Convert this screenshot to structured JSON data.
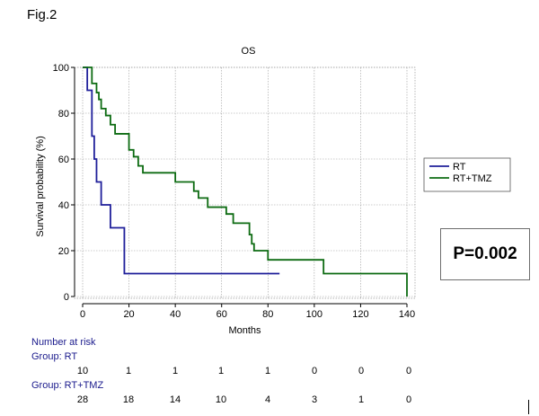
{
  "figure_label": "Fig.2",
  "p_value_text": "P=0.002",
  "colors": {
    "RT": "#1f1f9a",
    "RT+TMZ": "#0d6b12",
    "grid": "#9a9a9a"
  },
  "chart_data": {
    "type": "line",
    "subtype": "kaplan-meier-step",
    "title": "OS",
    "xlabel": "Months",
    "ylabel": "Survival probability (%)",
    "xlim": [
      0,
      140
    ],
    "ylim": [
      0,
      100
    ],
    "xticks": [
      0,
      20,
      40,
      60,
      80,
      100,
      120,
      140
    ],
    "yticks": [
      0,
      20,
      40,
      60,
      80,
      100
    ],
    "grid": true,
    "legend_position": "right",
    "series": [
      {
        "name": "RT",
        "x": [
          0,
          2,
          4,
          5,
          6,
          8,
          12,
          18,
          85
        ],
        "y": [
          100,
          90,
          70,
          60,
          50,
          40,
          30,
          10,
          10
        ]
      },
      {
        "name": "RT+TMZ",
        "x": [
          0,
          4,
          6,
          7,
          8,
          10,
          12,
          14,
          20,
          22,
          24,
          26,
          40,
          48,
          50,
          54,
          62,
          65,
          72,
          73,
          74,
          80,
          104,
          140
        ],
        "y": [
          100,
          93,
          89,
          86,
          82,
          79,
          75,
          71,
          64,
          61,
          57,
          54,
          50,
          46,
          43,
          39,
          36,
          32,
          27,
          23,
          20,
          16,
          10,
          0
        ]
      }
    ]
  },
  "number_at_risk": {
    "heading": "Number at risk",
    "times": [
      0,
      20,
      40,
      60,
      80,
      100,
      120,
      140
    ],
    "groups": [
      {
        "label": "Group: RT",
        "counts": [
          "10",
          "1",
          "1",
          "1",
          "1",
          "0",
          "0",
          "0"
        ]
      },
      {
        "label": "Group: RT+TMZ",
        "counts": [
          "28",
          "18",
          "14",
          "10",
          "4",
          "3",
          "1",
          "0"
        ]
      }
    ]
  }
}
